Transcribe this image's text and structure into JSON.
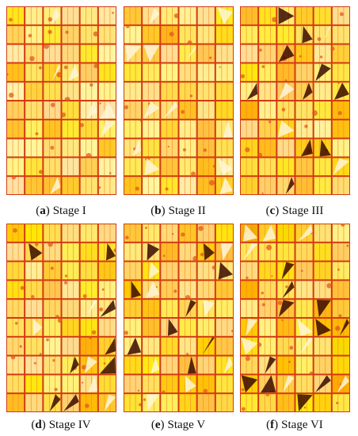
{
  "figure": {
    "panels": [
      {
        "letter": "a",
        "caption": "Stage I"
      },
      {
        "letter": "b",
        "caption": "Stage II"
      },
      {
        "letter": "c",
        "caption": "Stage III"
      },
      {
        "letter": "d",
        "caption": "Stage IV"
      },
      {
        "letter": "e",
        "caption": "Stage V"
      },
      {
        "letter": "f",
        "caption": "Stage VI"
      }
    ]
  }
}
